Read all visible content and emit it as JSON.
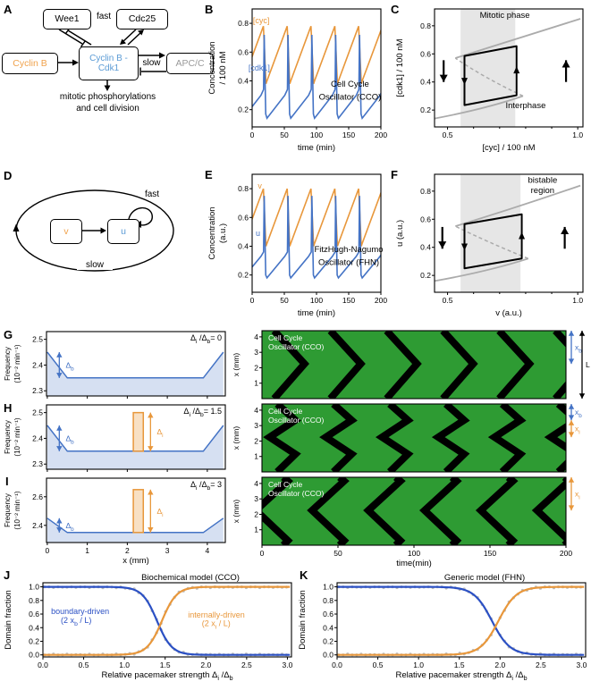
{
  "colors": {
    "orange": "#E8973B",
    "orange_text": "#F0A24C",
    "blue": "#4473C5",
    "blue_deep": "#2B50C4",
    "blue_text": "#5B9BD5",
    "gray_text": "#9A9A9A",
    "gray_curve": "#ABABAB",
    "gray_band": "#E6E6E6",
    "green": "#2E9B33",
    "dot_gray": "#BDBDBD"
  },
  "panel_letters": {
    "A": "A",
    "B": "B",
    "C": "C",
    "D": "D",
    "E": "E",
    "F": "F",
    "G": "G",
    "H": "H",
    "I": "I",
    "J": "J",
    "K": "K"
  },
  "panelA": {
    "wee1": "Wee1",
    "cdc25": "Cdc25",
    "fast": "fast",
    "cyclinB": "Cyclin B",
    "cdk1_l1": "Cyclin B -",
    "cdk1_l2": "Cdk1",
    "slow": "slow",
    "apcc": "APC/C",
    "caption_l1": "mitotic phosphorylations",
    "caption_l2": "and cell division"
  },
  "panelD": {
    "v": "v",
    "u": "u",
    "fast": "fast",
    "slow": "slow"
  },
  "chart_data": [
    {
      "id": "B",
      "type": "line",
      "in_plot_title_l1": "Cell Cycle",
      "in_plot_title_l2": "Oscillator (CCO)",
      "xlabel": "time (min)",
      "ylabel_l1": "Concentration",
      "ylabel_l2": "/ 100 nM",
      "xlim": [
        0,
        200
      ],
      "ylim": [
        0.08,
        0.9
      ],
      "xtick_vals": [
        0,
        50,
        100,
        150,
        200
      ],
      "xticks": [
        "0",
        "50",
        "100",
        "150",
        "200"
      ],
      "ytick_vals": [
        0.2,
        0.4,
        0.6,
        0.8
      ],
      "yticks": [
        "0.2",
        "0.4",
        "0.6",
        "0.8"
      ],
      "period_min": 37,
      "t_first_cycle": -14,
      "title_pos": [
        152,
        0.36,
        0.27
      ],
      "series": [
        {
          "name": "[cyc]",
          "color_key": "orange",
          "label_pos": [
            14,
            0.8
          ],
          "cycle_keypoints": [
            [
              0,
              0.4
            ],
            [
              0.85,
              0.78
            ],
            [
              0.96,
              0.38
            ],
            [
              1,
              0.4
            ]
          ]
        },
        {
          "name": "[cdk1]",
          "color_key": "blue",
          "label_pos": [
            11,
            0.47
          ],
          "cycle_keypoints": [
            [
              0,
              0.14
            ],
            [
              0.75,
              0.3
            ],
            [
              0.86,
              0.34
            ],
            [
              0.885,
              0.72
            ],
            [
              0.95,
              0.17
            ],
            [
              1,
              0.14
            ]
          ]
        }
      ]
    },
    {
      "id": "E",
      "type": "line",
      "in_plot_title_l1": "FitzHugh-Nagumo",
      "in_plot_title_l2": "Oscillator (FHN)",
      "xlabel": "time (min)",
      "ylabel_l1": "Concentration",
      "ylabel_l2": "(a.u.)",
      "xlim": [
        0,
        200
      ],
      "ylim": [
        0.08,
        0.9
      ],
      "xtick_vals": [
        0,
        50,
        100,
        150,
        200
      ],
      "xticks": [
        "0",
        "50",
        "100",
        "150",
        "200"
      ],
      "ytick_vals": [
        0.2,
        0.4,
        0.6,
        0.8
      ],
      "yticks": [
        "0.2",
        "0.4",
        "0.6",
        "0.8"
      ],
      "period_min": 37,
      "t_first_cycle": -14,
      "title_pos": [
        150,
        0.36,
        0.27
      ],
      "series": [
        {
          "name": "v",
          "color_key": "orange",
          "label_pos": [
            12,
            0.8
          ],
          "cycle_keypoints": [
            [
              0,
              0.42
            ],
            [
              0.85,
              0.8
            ],
            [
              0.96,
              0.4
            ],
            [
              1,
              0.42
            ]
          ]
        },
        {
          "name": "u",
          "color_key": "blue",
          "label_pos": [
            9,
            0.47
          ],
          "cycle_keypoints": [
            [
              0,
              0.18
            ],
            [
              0.75,
              0.33
            ],
            [
              0.86,
              0.36
            ],
            [
              0.885,
              0.75
            ],
            [
              0.95,
              0.2
            ],
            [
              1,
              0.18
            ]
          ]
        }
      ]
    },
    {
      "id": "C",
      "type": "phase",
      "xlabel": "[cyc] / 100 nM",
      "ylabel": "[cdk1] / 100 nM",
      "xlim": [
        0.45,
        1.02
      ],
      "ylim": [
        0.08,
        0.92
      ],
      "xticks_major_vals": [
        0.5,
        1.0
      ],
      "xticks_major": [
        "0.5",
        "1.0"
      ],
      "xticks_minor": [
        0.6,
        0.7,
        0.8,
        0.9
      ],
      "ytick_vals": [
        0.2,
        0.4,
        0.6,
        0.8
      ],
      "yticks": [
        "0.2",
        "0.4",
        "0.6",
        "0.8"
      ],
      "band": [
        0.55,
        0.76
      ],
      "nullcline": {
        "lower": [
          [
            0.45,
            0.14
          ],
          [
            0.65,
            0.21
          ],
          [
            0.79,
            0.3
          ]
        ],
        "middle": [
          [
            0.79,
            0.3
          ],
          [
            0.64,
            0.43
          ],
          [
            0.53,
            0.57
          ]
        ],
        "upper": [
          [
            0.53,
            0.57
          ],
          [
            0.75,
            0.7
          ],
          [
            1.01,
            0.85
          ]
        ]
      },
      "loop": {
        "bl": [
          0.565,
          0.235
        ],
        "br": [
          0.765,
          0.305
        ],
        "tr": [
          0.765,
          0.655
        ],
        "tl": [
          0.565,
          0.585
        ]
      },
      "drift": {
        "down": {
          "x": 0.485,
          "y1": 0.555,
          "y2": 0.4
        },
        "up": {
          "x": 0.955,
          "y1": 0.4,
          "y2": 0.555
        }
      },
      "label_top": "Mitotic phase",
      "label_top_pos": [
        0.72,
        0.855
      ],
      "label_bottom": "Interphase",
      "label_bottom_pos": [
        0.8,
        0.215
      ]
    },
    {
      "id": "F",
      "type": "phase",
      "xlabel": "v (a.u.)",
      "ylabel": "u (a.u.)",
      "xlim": [
        0.45,
        1.02
      ],
      "ylim": [
        0.08,
        0.92
      ],
      "xticks_major_vals": [
        0.5,
        1.0
      ],
      "xticks_major": [
        "0.5",
        "1.0"
      ],
      "xticks_minor": [
        0.6,
        0.7,
        0.8,
        0.9
      ],
      "ytick_vals": [
        0.2,
        0.4,
        0.6,
        0.8
      ],
      "yticks": [
        "0.2",
        "0.4",
        "0.6",
        "0.8"
      ],
      "band": [
        0.55,
        0.78
      ],
      "nullcline": {
        "lower": [
          [
            0.45,
            0.16
          ],
          [
            0.66,
            0.23
          ],
          [
            0.81,
            0.32
          ]
        ],
        "middle": [
          [
            0.81,
            0.32
          ],
          [
            0.65,
            0.44
          ],
          [
            0.53,
            0.55
          ]
        ],
        "upper": [
          [
            0.53,
            0.55
          ],
          [
            0.76,
            0.68
          ],
          [
            1.01,
            0.84
          ]
        ]
      },
      "loop": {
        "bl": [
          0.565,
          0.25
        ],
        "br": [
          0.785,
          0.32
        ],
        "tr": [
          0.785,
          0.635
        ],
        "tl": [
          0.565,
          0.565
        ]
      },
      "drift": {
        "down": {
          "x": 0.48,
          "y1": 0.545,
          "y2": 0.39
        },
        "up": {
          "x": 0.95,
          "y1": 0.39,
          "y2": 0.545
        }
      },
      "label_band_l1": "bistable",
      "label_band_l1_pos": [
        0.865,
        0.86
      ],
      "label_band_l2": "region",
      "label_band_l2_pos": [
        0.865,
        0.785
      ]
    },
    {
      "id": "Gp",
      "type": "profile",
      "ratio_label": "Δ~i~ /Δ~b~= 0",
      "ylabel_l1": "Frequency",
      "ylabel_l2": "(10⁻² min⁻¹)",
      "xlim": [
        -0.02,
        4.45
      ],
      "ylim": [
        2.28,
        2.53
      ],
      "ytick_vals": [
        2.3,
        2.4,
        2.5
      ],
      "yticks": [
        "2.3",
        "2.4",
        "2.5"
      ],
      "xtick_vals": [
        0,
        1,
        2,
        3,
        4
      ],
      "baseline": 2.35,
      "delta_b": 0.1,
      "edge_width": 0.5,
      "db_arrow_x": 0.3,
      "db_label": "Δ~b~",
      "pulse": null
    },
    {
      "id": "Hp",
      "type": "profile",
      "ratio_label": "Δ~i~ /Δ~b~= 1.5",
      "ylabel_l1": "Frequency",
      "ylabel_l2": "(10⁻² min⁻¹)",
      "xlim": [
        -0.02,
        4.45
      ],
      "ylim": [
        2.28,
        2.53
      ],
      "ytick_vals": [
        2.3,
        2.4,
        2.5
      ],
      "yticks": [
        "2.3",
        "2.4",
        "2.5"
      ],
      "xtick_vals": [
        0,
        1,
        2,
        3,
        4
      ],
      "baseline": 2.35,
      "delta_b": 0.1,
      "edge_width": 0.5,
      "db_arrow_x": 0.3,
      "db_label": "Δ~b~",
      "pulse": {
        "x0": 2.15,
        "x1": 2.4,
        "top": 2.5
      },
      "di_arrow_x": 2.58,
      "di_label": "Δ~i~"
    },
    {
      "id": "Ip",
      "type": "profile",
      "ratio_label": "Δ~i~ /Δ~b~= 3",
      "ylabel_l1": "Frequency",
      "ylabel_l2": "(10⁻² min⁻¹)",
      "xlim": [
        -0.02,
        4.45
      ],
      "ylim": [
        2.28,
        2.73
      ],
      "ytick_vals": [
        2.4,
        2.6
      ],
      "yticks": [
        "2.4",
        "2.6"
      ],
      "xtick_vals": [
        0,
        1,
        2,
        3,
        4
      ],
      "xtick_labels": [
        "0",
        "1",
        "2",
        "3",
        "4"
      ],
      "xlabel": "x (mm)",
      "baseline": 2.35,
      "delta_b": 0.1,
      "edge_width": 0.5,
      "db_arrow_x": 0.3,
      "db_label": "Δ~b~",
      "pulse": {
        "x0": 2.15,
        "x1": 2.4,
        "top": 2.65
      },
      "di_arrow_x": 2.58,
      "di_label": "Δ~i~"
    },
    {
      "id": "Gk",
      "type": "kymo",
      "title_l1": "Cell Cycle",
      "title_l2": "Oscillator (CCO)",
      "xlim": [
        0,
        200
      ],
      "ylim": [
        0,
        4.4
      ],
      "ytick_vals": [
        1,
        2,
        3,
        4
      ],
      "yticks": [
        "1",
        "2",
        "3",
        "4"
      ],
      "ylabel": "x (mm)",
      "period": 37,
      "t0": 8,
      "pattern": "boundary",
      "vertex_x": 2.25,
      "dt_collision": 20,
      "annotations": [
        {
          "label": "x~b~",
          "color_key": "blue",
          "from": 4.4,
          "to": 2.25
        },
        {
          "label": "L",
          "color_key": "black",
          "from": 4.4,
          "to": 0,
          "col": 1
        }
      ]
    },
    {
      "id": "Hk",
      "type": "kymo",
      "title_l1": "Cell Cycle",
      "title_l2": "Oscillator (CCO)",
      "xlim": [
        0,
        200
      ],
      "ylim": [
        0,
        4.4
      ],
      "ytick_vals": [
        1,
        2,
        3,
        4
      ],
      "yticks": [
        "1",
        "2",
        "3",
        "4"
      ],
      "ylabel": "x (mm)",
      "period": 37,
      "t0": 10,
      "pattern": "mixed",
      "vertex_x": 2.25,
      "lead": 5,
      "collision_x": [
        3.35,
        1.15
      ],
      "dt_collision": 12,
      "annotations": [
        {
          "label": "x~b~",
          "color_key": "blue",
          "from": 4.4,
          "to": 3.35
        },
        {
          "label": "x~i~",
          "color_key": "orange",
          "from": 3.35,
          "to": 2.25
        }
      ]
    },
    {
      "id": "Ik",
      "type": "kymo",
      "title_l1": "Cell Cycle",
      "title_l2": "Oscillator (CCO)",
      "xlim": [
        0,
        200
      ],
      "ylim": [
        0,
        4.4
      ],
      "ytick_vals": [
        1,
        2,
        3,
        4
      ],
      "yticks": [
        "1",
        "2",
        "3",
        "4"
      ],
      "ylabel": "x (mm)",
      "period": 37,
      "t0": 14,
      "pattern": "mixed",
      "vertex_x": 2.25,
      "lead": 18,
      "collision_x": [
        4.15,
        0.3
      ],
      "dt_collision": 3,
      "annotations": [
        {
          "label": "x~i~",
          "color_key": "orange",
          "from": 4.4,
          "to": 2.25
        }
      ],
      "xtick_vals": [
        0,
        50,
        100,
        150,
        200
      ],
      "xticks": [
        "0",
        "50",
        "100",
        "150",
        "200"
      ],
      "xlabel": "time(min)"
    },
    {
      "id": "J",
      "type": "sigmoid",
      "title": "Biochemical model (CCO)",
      "xlabel": "Relative pacemaker strength Δ~i~ /Δ~b~",
      "ylabel": "Domain fraction",
      "xlim": [
        0,
        3.05
      ],
      "ylim": [
        -0.03,
        1.06
      ],
      "xtick_vals": [
        0,
        0.5,
        1,
        1.5,
        2,
        2.5,
        3
      ],
      "xticks": [
        "0.0",
        "0.5",
        "1.0",
        "1.5",
        "2.0",
        "2.5",
        "3.0"
      ],
      "ytick_vals": [
        0,
        0.2,
        0.4,
        0.6,
        0.8,
        1
      ],
      "yticks": [
        "0.0",
        "0.2",
        "0.4",
        "0.6",
        "0.8",
        "1.0"
      ],
      "series": [
        {
          "name": "boundary-driven",
          "direction": "fall",
          "center": 1.4,
          "width": 0.09,
          "color_key": "blue_deep"
        },
        {
          "name": "internally-driven",
          "direction": "rise",
          "center": 1.46,
          "width": 0.09,
          "color_key": "orange"
        }
      ],
      "labels": [
        {
          "text": "boundary-driven",
          "pos": [
            0.1,
            0.6
          ],
          "color_key": "blue_deep"
        },
        {
          "text": "(2 x~b~ / L)",
          "pos": [
            0.22,
            0.47
          ],
          "color_key": "blue_deep"
        },
        {
          "text": "internally-driven",
          "pos": [
            1.78,
            0.55
          ],
          "color_key": "orange"
        },
        {
          "text": "(2 x~i~ / L)",
          "pos": [
            1.95,
            0.42
          ],
          "color_key": "orange"
        }
      ]
    },
    {
      "id": "K",
      "type": "sigmoid",
      "title": "Generic model (FHN)",
      "xlabel": "Relative pacemaker strength Δ~i~ /Δ~b~",
      "ylabel": "Domain fraction",
      "xlim": [
        0,
        3.05
      ],
      "ylim": [
        -0.03,
        1.06
      ],
      "xtick_vals": [
        0,
        0.5,
        1,
        1.5,
        2,
        2.5,
        3
      ],
      "xticks": [
        "0.0",
        "0.5",
        "1.0",
        "1.5",
        "2.0",
        "2.5",
        "3.0"
      ],
      "ytick_vals": [
        0,
        0.2,
        0.4,
        0.6,
        0.8,
        1
      ],
      "yticks": [
        "0.0",
        "0.2",
        "0.4",
        "0.6",
        "0.8",
        "1.0"
      ],
      "series": [
        {
          "name": "boundary-driven",
          "direction": "fall",
          "center": 1.9,
          "width": 0.11,
          "color_key": "blue_deep"
        },
        {
          "name": "internally-driven",
          "direction": "rise",
          "center": 1.98,
          "width": 0.11,
          "color_key": "orange"
        }
      ],
      "labels": []
    }
  ]
}
